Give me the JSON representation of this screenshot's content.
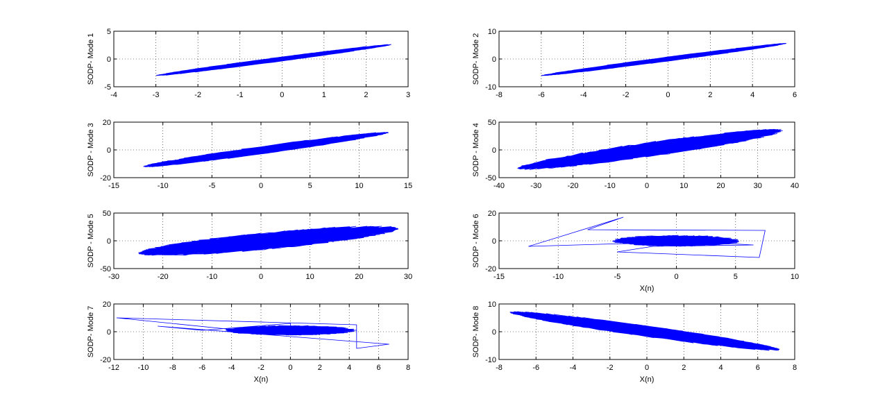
{
  "colors": {
    "plot": "#0000ff",
    "axes": "#000000",
    "grid": "#000000",
    "background": "#ffffff"
  },
  "chart_data": [
    {
      "type": "line",
      "ylabel": "SODP- Mode 1",
      "xlabel": "",
      "xlim": [
        -4,
        3
      ],
      "ylim": [
        -5,
        5
      ],
      "xticks": [
        "-4",
        "-3",
        "-2",
        "-1",
        "0",
        "1",
        "2",
        "3"
      ],
      "yticks": [
        "-5",
        "0",
        "5"
      ],
      "grid": true,
      "shape": {
        "kind": "ellipse",
        "start": [
          -3,
          -3
        ],
        "end": [
          2.6,
          2.6
        ],
        "width": 0.35
      }
    },
    {
      "type": "line",
      "ylabel": "SODP- Mode 2",
      "xlabel": "",
      "xlim": [
        -8,
        6
      ],
      "ylim": [
        -10,
        10
      ],
      "xticks": [
        "-8",
        "-6",
        "-4",
        "-2",
        "0",
        "2",
        "4",
        "6"
      ],
      "yticks": [
        "-10",
        "0",
        "10"
      ],
      "grid": true,
      "shape": {
        "kind": "ellipse",
        "start": [
          -6,
          -6
        ],
        "end": [
          5.6,
          5.6
        ],
        "width": 0.7
      }
    },
    {
      "type": "line",
      "ylabel": "SODP - Mode 3",
      "xlabel": "",
      "xlim": [
        -15,
        15
      ],
      "ylim": [
        -20,
        20
      ],
      "xticks": [
        "-15",
        "-10",
        "-5",
        "0",
        "5",
        "10",
        "15"
      ],
      "yticks": [
        "-20",
        "0",
        "20"
      ],
      "grid": true,
      "shape": {
        "kind": "ellipse",
        "start": [
          -12,
          -12
        ],
        "end": [
          13,
          12.5
        ],
        "width": 2.5
      }
    },
    {
      "type": "line",
      "ylabel": "SODP - Mode 4",
      "xlabel": "",
      "xlim": [
        -40,
        40
      ],
      "ylim": [
        -50,
        50
      ],
      "xticks": [
        "-40",
        "-30",
        "-20",
        "-10",
        "0",
        "10",
        "20",
        "30",
        "40"
      ],
      "yticks": [
        "-50",
        "0",
        "50"
      ],
      "grid": true,
      "shape": {
        "kind": "ellipse",
        "start": [
          -35,
          -33
        ],
        "end": [
          37,
          35
        ],
        "width": 12
      }
    },
    {
      "type": "line",
      "ylabel": "SODP - Mode 5",
      "xlabel": "",
      "xlim": [
        -30,
        30
      ],
      "ylim": [
        -50,
        50
      ],
      "xticks": [
        "-30",
        "-20",
        "-10",
        "0",
        "10",
        "20",
        "30"
      ],
      "yticks": [
        "-50",
        "0",
        "50"
      ],
      "grid": true,
      "shape": {
        "kind": "ellipse",
        "start": [
          -25,
          -22
        ],
        "end": [
          28,
          22
        ],
        "width": 14
      }
    },
    {
      "type": "line",
      "ylabel": "SODP - Mode 6",
      "xlabel": "X(n)",
      "xlim": [
        -15,
        10
      ],
      "ylim": [
        -20,
        20
      ],
      "xticks": [
        "-15",
        "-10",
        "-5",
        "0",
        "5",
        "10"
      ],
      "yticks": [
        "-20",
        "0",
        "20"
      ],
      "grid": true,
      "shape": {
        "kind": "blob",
        "center": [
          0,
          0
        ],
        "rx": 5.5,
        "ry": 4,
        "outliers": [
          [
            -12.5,
            -4
          ],
          [
            -4.5,
            17
          ],
          [
            -7.5,
            8
          ],
          [
            7.5,
            7.5
          ],
          [
            7,
            -12
          ],
          [
            -5,
            -8
          ],
          [
            -2,
            -4
          ],
          [
            6.5,
            -3
          ]
        ]
      }
    },
    {
      "type": "line",
      "ylabel": "SODP- Mode 7",
      "xlabel": "X(n)",
      "xlim": [
        -12,
        8
      ],
      "ylim": [
        -20,
        20
      ],
      "xticks": [
        "-12",
        "-10",
        "-8",
        "-6",
        "-4",
        "-2",
        "0",
        "2",
        "4",
        "6",
        "8"
      ],
      "yticks": [
        "-20",
        "0",
        "20"
      ],
      "grid": true,
      "shape": {
        "kind": "blob",
        "center": [
          0,
          1
        ],
        "rx": 4.5,
        "ry": 3.5,
        "outliers": [
          [
            -11.8,
            10
          ],
          [
            4.5,
            5
          ],
          [
            4.5,
            -12
          ],
          [
            6.7,
            -9
          ],
          [
            -9,
            4
          ],
          [
            -6,
            1
          ],
          [
            0,
            6
          ]
        ]
      }
    },
    {
      "type": "line",
      "ylabel": "SODP- Mode 8",
      "xlabel": "X(n)",
      "xlim": [
        -8,
        8
      ],
      "ylim": [
        -10,
        10
      ],
      "xticks": [
        "-8",
        "-6",
        "-4",
        "-2",
        "0",
        "2",
        "4",
        "6",
        "8"
      ],
      "yticks": [
        "-10",
        "0",
        "10"
      ],
      "grid": true,
      "shape": {
        "kind": "ellipse",
        "start": [
          -7.4,
          7
        ],
        "end": [
          7.2,
          -6.5
        ],
        "width": 1.8
      }
    }
  ]
}
